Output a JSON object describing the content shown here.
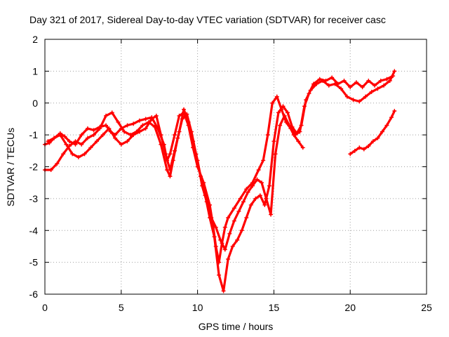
{
  "chart_data": {
    "type": "scatter",
    "title": "Day 321 of 2017, Sidereal Day-to-day VTEC variation (SDTVAR) for receiver casc",
    "xlabel": "GPS time / hours",
    "ylabel": "SDTVAR / TECUs",
    "xlim": [
      0,
      25
    ],
    "ylim": [
      -6,
      2
    ],
    "xticks": [
      "0",
      "5",
      "10",
      "15",
      "20",
      "25"
    ],
    "yticks": [
      "-6",
      "-5",
      "-4",
      "-3",
      "-2",
      "-1",
      "0",
      "1",
      "2"
    ],
    "grid": true,
    "marker": "+",
    "color": "#ff0000",
    "series": [
      {
        "x": [
          0.0,
          0.3,
          0.6,
          1.0,
          1.3,
          1.6,
          2.0,
          2.4,
          2.8,
          3.2,
          3.6,
          4.0,
          4.3,
          4.6,
          5.0,
          5.4,
          5.8,
          6.2,
          6.6,
          7.0,
          7.4,
          7.8,
          8.0,
          8.2,
          8.5,
          8.8,
          9.1,
          9.4,
          9.7,
          10.0,
          10.4,
          10.8,
          11.0,
          11.2,
          11.4,
          11.6,
          11.8,
          12.0,
          12.4,
          12.8,
          13.2,
          13.6,
          14.0,
          14.3,
          14.6,
          14.9,
          15.2,
          15.5,
          15.8,
          16.1,
          16.4,
          16.7,
          17.0,
          17.3,
          17.6,
          18.0,
          18.4,
          18.8,
          19.2,
          19.6,
          20.0,
          20.4,
          20.8,
          21.2,
          21.6,
          22.0,
          22.4,
          22.8
        ],
        "y": [
          -1.3,
          -1.25,
          -1.1,
          -0.95,
          -1.05,
          -1.2,
          -1.3,
          -1.0,
          -0.8,
          -0.85,
          -0.75,
          -0.7,
          -0.9,
          -1.0,
          -0.8,
          -0.7,
          -0.65,
          -0.55,
          -0.5,
          -0.45,
          -0.8,
          -1.3,
          -1.8,
          -1.6,
          -1.0,
          -0.4,
          -0.3,
          -0.7,
          -1.4,
          -2.0,
          -2.5,
          -3.2,
          -3.8,
          -4.5,
          -5.0,
          -4.4,
          -3.9,
          -3.6,
          -3.3,
          -3.0,
          -2.7,
          -2.5,
          -2.1,
          -1.8,
          -1.0,
          0.0,
          0.2,
          -0.2,
          -0.6,
          -0.8,
          -1.0,
          -0.9,
          -0.1,
          0.3,
          0.6,
          0.75,
          0.7,
          0.8,
          0.6,
          0.7,
          0.5,
          0.65,
          0.5,
          0.7,
          0.55,
          0.7,
          0.75,
          0.85
        ]
      },
      {
        "x": [
          0.0,
          0.4,
          0.8,
          1.2,
          1.6,
          2.0,
          2.4,
          2.8,
          3.2,
          3.6,
          4.0,
          4.4,
          4.8,
          5.2,
          5.6,
          6.0,
          6.4,
          6.8,
          7.2,
          7.6,
          8.0,
          8.2,
          8.4,
          8.7,
          9.0,
          9.3,
          9.6,
          9.9,
          10.2,
          10.5,
          10.8,
          11.1,
          11.4,
          11.7,
          12.0,
          12.3,
          12.6,
          12.9,
          13.2,
          13.5,
          13.8,
          14.1,
          14.4,
          14.7,
          15.0,
          15.3,
          15.6,
          15.9,
          16.2,
          16.5,
          16.8,
          17.1,
          17.4,
          17.8,
          18.2,
          18.6,
          19.0,
          19.4,
          19.8,
          20.2,
          20.6,
          21.0,
          21.4,
          21.8,
          22.2,
          22.6,
          22.9
        ],
        "y": [
          -2.1,
          -2.1,
          -1.9,
          -1.6,
          -1.35,
          -1.2,
          -1.3,
          -1.1,
          -1.0,
          -0.8,
          -0.4,
          -0.3,
          -0.6,
          -0.9,
          -1.0,
          -0.9,
          -0.7,
          -0.6,
          -0.75,
          -1.3,
          -2.1,
          -2.3,
          -1.8,
          -1.1,
          -0.5,
          -0.35,
          -0.9,
          -1.6,
          -2.3,
          -2.9,
          -3.6,
          -4.2,
          -5.4,
          -5.9,
          -4.9,
          -4.5,
          -4.3,
          -4.0,
          -3.6,
          -3.2,
          -3.0,
          -2.9,
          -3.2,
          -2.6,
          -1.2,
          -0.3,
          -0.1,
          -0.3,
          -0.75,
          -0.95,
          -0.7,
          0.1,
          0.4,
          0.6,
          0.7,
          0.55,
          0.6,
          0.45,
          0.2,
          0.1,
          0.05,
          0.2,
          0.35,
          0.45,
          0.55,
          0.7,
          1.0
        ]
      },
      {
        "x": [
          0.2,
          0.6,
          1.0,
          1.4,
          1.8,
          2.2,
          2.6,
          3.0,
          3.4,
          3.8,
          4.2,
          4.6,
          5.0,
          5.4,
          5.8,
          6.2,
          6.6,
          7.0,
          7.3,
          7.6,
          7.9,
          8.2,
          8.5,
          8.8,
          9.1,
          9.4,
          9.7,
          10.0,
          10.3,
          10.6,
          10.9,
          11.2,
          11.5,
          11.8,
          12.1,
          12.4,
          12.7,
          13.0,
          13.3,
          13.6,
          13.9,
          14.2,
          14.5,
          14.8,
          15.1,
          15.4,
          15.7,
          16.0,
          16.3,
          16.6,
          16.9
        ],
        "y": [
          -1.2,
          -1.1,
          -1.0,
          -1.3,
          -1.6,
          -1.7,
          -1.6,
          -1.4,
          -1.2,
          -1.0,
          -0.8,
          -1.1,
          -1.3,
          -1.2,
          -1.0,
          -0.9,
          -0.8,
          -0.5,
          -0.4,
          -1.0,
          -1.6,
          -2.1,
          -1.5,
          -0.9,
          -0.2,
          -0.6,
          -1.2,
          -1.8,
          -2.6,
          -3.1,
          -3.6,
          -3.9,
          -4.3,
          -4.6,
          -4.1,
          -3.7,
          -3.4,
          -3.1,
          -2.8,
          -2.6,
          -2.4,
          -2.5,
          -3.0,
          -3.5,
          -1.6,
          -0.7,
          -0.4,
          -0.7,
          -1.0,
          -1.2,
          -1.4
        ]
      },
      {
        "x": [
          20.0,
          20.3,
          20.6,
          20.9,
          21.2,
          21.5,
          21.8,
          22.1,
          22.4,
          22.7,
          22.9
        ],
        "y": [
          -1.6,
          -1.5,
          -1.4,
          -1.45,
          -1.35,
          -1.2,
          -1.1,
          -0.9,
          -0.7,
          -0.45,
          -0.25
        ]
      }
    ]
  }
}
